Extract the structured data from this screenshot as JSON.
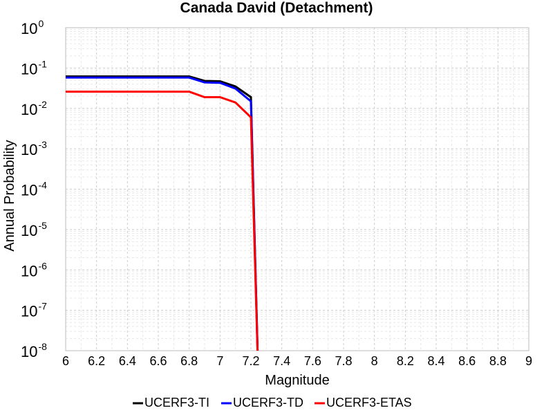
{
  "chart_data": {
    "type": "line",
    "title": "Canada David (Detachment)",
    "xlabel": "Magnitude",
    "ylabel": "Annual Probability",
    "xlim": [
      6,
      9
    ],
    "ylim": [
      1e-08,
      1
    ],
    "y_scale": "log",
    "grid": true,
    "legend_position": "bottom",
    "x_ticks": [
      "6",
      "6.2",
      "6.4",
      "6.6",
      "6.8",
      "7",
      "7.2",
      "7.4",
      "7.6",
      "7.8",
      "8",
      "8.2",
      "8.4",
      "8.6",
      "8.8",
      "9"
    ],
    "y_ticks": [
      {
        "base": "10",
        "exp": "0"
      },
      {
        "base": "10",
        "exp": "-1"
      },
      {
        "base": "10",
        "exp": "-2"
      },
      {
        "base": "10",
        "exp": "-3"
      },
      {
        "base": "10",
        "exp": "-4"
      },
      {
        "base": "10",
        "exp": "-5"
      },
      {
        "base": "10",
        "exp": "-6"
      },
      {
        "base": "10",
        "exp": "-7"
      },
      {
        "base": "10",
        "exp": "-8"
      }
    ],
    "series": [
      {
        "name": "UCERF3-TI",
        "color": "#000000",
        "x": [
          6.0,
          6.1,
          6.2,
          6.3,
          6.4,
          6.5,
          6.6,
          6.7,
          6.8,
          6.9,
          7.0,
          7.1,
          7.2,
          7.25
        ],
        "y": [
          0.062,
          0.062,
          0.062,
          0.062,
          0.062,
          0.062,
          0.062,
          0.062,
          0.062,
          0.048,
          0.047,
          0.035,
          0.019,
          1e-09
        ]
      },
      {
        "name": "UCERF3-TD",
        "color": "#0000ff",
        "x": [
          6.0,
          6.1,
          6.2,
          6.3,
          6.4,
          6.5,
          6.6,
          6.7,
          6.8,
          6.9,
          7.0,
          7.1,
          7.2,
          7.25
        ],
        "y": [
          0.058,
          0.058,
          0.058,
          0.058,
          0.058,
          0.058,
          0.058,
          0.058,
          0.058,
          0.044,
          0.043,
          0.031,
          0.015,
          1e-09
        ]
      },
      {
        "name": "UCERF3-ETAS",
        "color": "#ff0000",
        "x": [
          6.0,
          6.1,
          6.2,
          6.3,
          6.4,
          6.5,
          6.6,
          6.7,
          6.8,
          6.9,
          7.0,
          7.1,
          7.2,
          7.25
        ],
        "y": [
          0.026,
          0.026,
          0.026,
          0.026,
          0.026,
          0.026,
          0.026,
          0.026,
          0.026,
          0.019,
          0.019,
          0.014,
          0.006,
          1e-09
        ]
      }
    ]
  }
}
